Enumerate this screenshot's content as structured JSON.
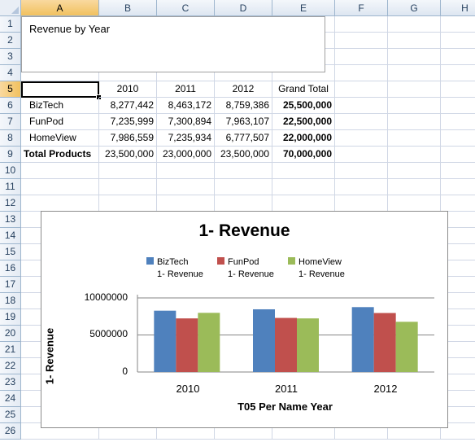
{
  "columns": [
    "A",
    "B",
    "C",
    "D",
    "E",
    "F",
    "G",
    "H"
  ],
  "rows": [
    "1",
    "2",
    "3",
    "4",
    "5",
    "6",
    "7",
    "8",
    "9",
    "10",
    "11",
    "12",
    "13",
    "14",
    "15",
    "16",
    "17",
    "18",
    "19",
    "20",
    "21",
    "22",
    "23",
    "24",
    "25",
    "26"
  ],
  "active_cell": "A5",
  "textbox": {
    "text": "Revenue by Year"
  },
  "pivot": {
    "header": {
      "label": "",
      "years": [
        "2010",
        "2011",
        "2012"
      ],
      "grand_total": "Grand Total"
    },
    "rows": [
      {
        "label": "BizTech",
        "values": [
          "8,277,442",
          "8,463,172",
          "8,759,386"
        ],
        "total": "25,500,000"
      },
      {
        "label": "FunPod",
        "values": [
          "7,235,999",
          "7,300,894",
          "7,963,107"
        ],
        "total": "22,500,000"
      },
      {
        "label": "HomeView",
        "values": [
          "7,986,559",
          "7,235,934",
          "6,777,507"
        ],
        "total": "22,000,000"
      }
    ],
    "totals": {
      "label": "Total Products",
      "values": [
        "23,500,000",
        "23,000,000",
        "23,500,000"
      ],
      "total": "70,000,000"
    }
  },
  "chart_data": {
    "type": "bar",
    "title": "1- Revenue",
    "xlabel": "T05 Per Name Year",
    "ylabel": "1- Revenue",
    "categories": [
      "2010",
      "2011",
      "2012"
    ],
    "series": [
      {
        "name": "BizTech",
        "sub": "1- Revenue",
        "color": "#4f81bd",
        "values": [
          8277442,
          8463172,
          8759386
        ]
      },
      {
        "name": "FunPod",
        "sub": "1- Revenue",
        "color": "#c0504d",
        "values": [
          7235999,
          7300894,
          7963107
        ]
      },
      {
        "name": "HomeView",
        "sub": "1- Revenue",
        "color": "#9bbb59",
        "values": [
          7986559,
          7235934,
          6777507
        ]
      }
    ],
    "yticks": [
      "10000000",
      "5000000",
      "0"
    ],
    "ylim": [
      0,
      10000000
    ],
    "grid": true,
    "legend_position": "top"
  }
}
